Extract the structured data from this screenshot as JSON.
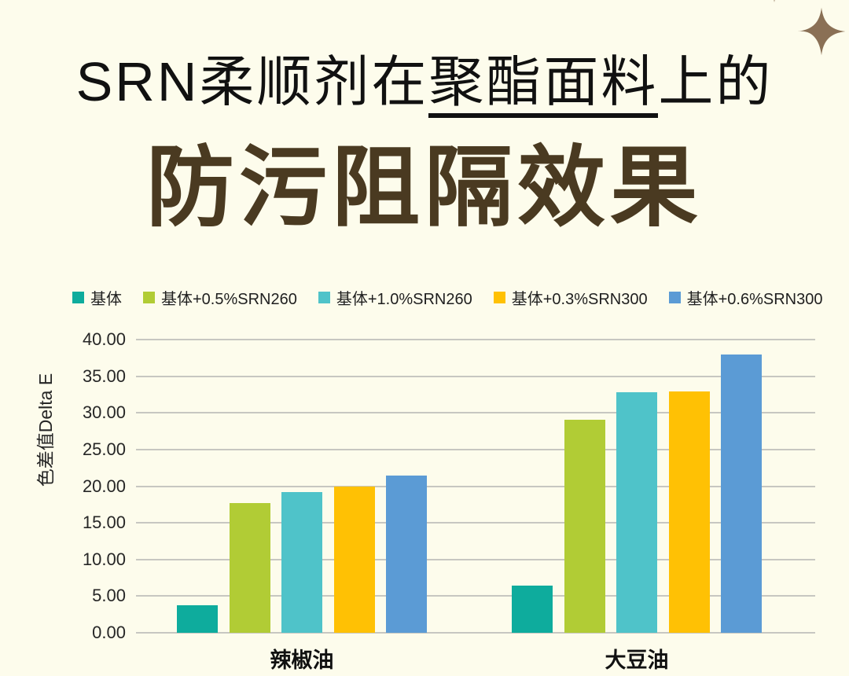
{
  "page": {
    "background": "#FDFCEC"
  },
  "header": {
    "title_prefix": "SRN柔顺剂在",
    "title_underlined": "聚酯面料",
    "title_suffix": "上的",
    "subtitle": "防污阻隔效果"
  },
  "decor": {
    "sparkle_color": "#8A7055"
  },
  "chart_data": {
    "type": "bar",
    "title": "",
    "xlabel": "",
    "ylabel": "色差值Delta E",
    "ylim": [
      0,
      40
    ],
    "ytick_step": 5,
    "ytick_labels": [
      "40.00",
      "35.00",
      "30.00",
      "25.00",
      "20.00",
      "15.00",
      "10.00",
      "5.00",
      "0.00"
    ],
    "grid": true,
    "legend_position": "top",
    "categories": [
      "辣椒油",
      "大豆油"
    ],
    "series": [
      {
        "name": "基体",
        "color": "#0EAC9D",
        "values": [
          3.8,
          6.4
        ]
      },
      {
        "name": "基体+0.5%SRN260",
        "color": "#B1CC35",
        "values": [
          17.7,
          29.1
        ]
      },
      {
        "name": "基体+1.0%SRN260",
        "color": "#4FC3C9",
        "values": [
          19.2,
          32.8
        ]
      },
      {
        "name": "基体+0.3%SRN300",
        "color": "#FFC104",
        "values": [
          19.9,
          32.9
        ]
      },
      {
        "name": "基体+0.6%SRN300",
        "color": "#5B9BD5",
        "values": [
          21.4,
          38.0
        ]
      }
    ],
    "grid_color": "#C7C7C1",
    "axis_text_color": "#262626"
  }
}
